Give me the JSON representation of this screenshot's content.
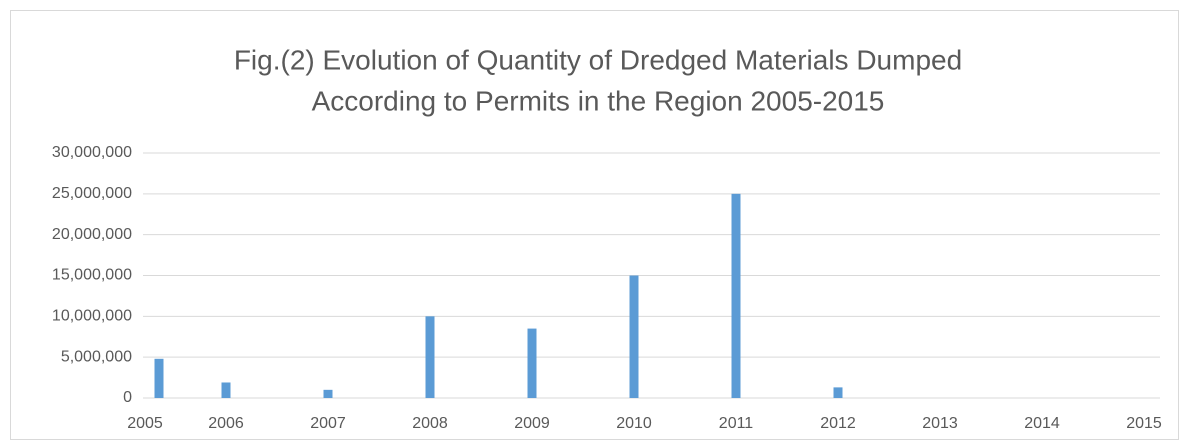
{
  "chart_data": {
    "type": "bar",
    "title": [
      "Fig.(2) Evolution of Quantity of Dredged Materials Dumped",
      "According to Permits in the Region 2005-2015"
    ],
    "categories": [
      "2005",
      "2006",
      "2007",
      "2008",
      "2009",
      "2010",
      "2011",
      "2012",
      "2013",
      "2014",
      "2015"
    ],
    "values": [
      4800000,
      1900000,
      1000000,
      10000000,
      8500000,
      15000000,
      25000000,
      1300000,
      null,
      null,
      null
    ],
    "color": "#5b9bd5",
    "ylim": [
      0,
      30000000
    ],
    "yticks": [
      0,
      {
        "value": 5000000,
        "label": "5,000,000"
      },
      {
        "value": 10000000,
        "label": "10,000,000"
      },
      {
        "value": 15000000,
        "label": "15,000,000"
      },
      {
        "value": 20000000,
        "label": "20,000,000"
      },
      {
        "value": 25000000,
        "label": "25,000,000"
      },
      {
        "value": 30000000,
        "label": "30,000,000"
      }
    ],
    "grid": true
  }
}
